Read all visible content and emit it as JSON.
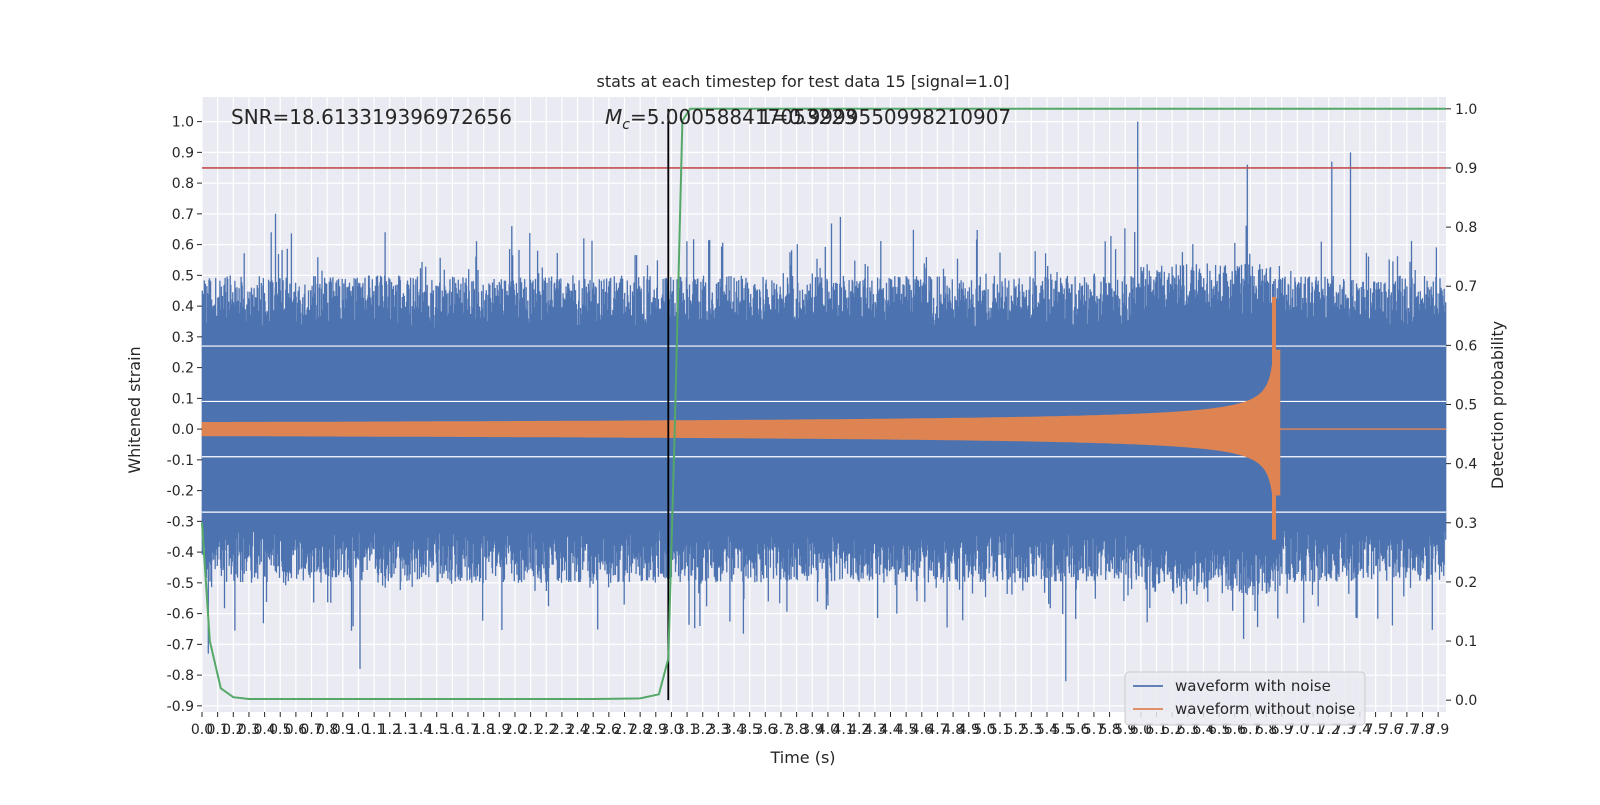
{
  "chart_data": {
    "type": "line",
    "title": "stats at each timestep for test data 15 [signal=1.0]",
    "xlabel": "Time (s)",
    "ylabel": "Whitened strain",
    "ylabel_right": "Detection probability",
    "xlim": [
      0.0,
      7.95
    ],
    "ylim": [
      -0.92,
      1.08
    ],
    "ylim_right": [
      -0.02,
      1.02
    ],
    "x_ticks": [
      0.0,
      0.1,
      0.2,
      0.3,
      0.4,
      0.5,
      0.6,
      0.7,
      0.8,
      0.9,
      1.0,
      1.1,
      1.2,
      1.3,
      1.4,
      1.5,
      1.6,
      1.7,
      1.8,
      1.9,
      2.0,
      2.1,
      2.2,
      2.3,
      2.4,
      2.5,
      2.6,
      2.7,
      2.8,
      2.9,
      3.0,
      3.1,
      3.2,
      3.3,
      3.4,
      3.5,
      3.6,
      3.7,
      3.8,
      3.9,
      4.0,
      4.1,
      4.2,
      4.3,
      4.4,
      4.5,
      4.6,
      4.7,
      4.8,
      4.9,
      5.0,
      5.1,
      5.2,
      5.3,
      5.4,
      5.5,
      5.6,
      5.7,
      5.8,
      5.9,
      6.0,
      6.1,
      6.2,
      6.3,
      6.4,
      6.5,
      6.6,
      6.7,
      6.8,
      6.9,
      7.0,
      7.1,
      7.2,
      7.3,
      7.4,
      7.5,
      7.6,
      7.7,
      7.8,
      7.9
    ],
    "y_ticks": [
      -0.9,
      -0.8,
      -0.7,
      -0.6,
      -0.5,
      -0.4,
      -0.3,
      -0.2,
      -0.1,
      0.0,
      0.1,
      0.2,
      0.3,
      0.4,
      0.5,
      0.6,
      0.7,
      0.8,
      0.9,
      1.0
    ],
    "y_ticks_right": [
      0.0,
      0.1,
      0.2,
      0.3,
      0.4,
      0.5,
      0.6,
      0.7,
      0.8,
      0.9,
      1.0
    ],
    "grid": true,
    "annotations": {
      "snr": "SNR=18.613319396972656",
      "mc_prefix": "M",
      "mc_sub": "c",
      "mc_value": "=5.000588417053223",
      "overlap": "1=0.9999550998210907"
    },
    "threshold_right": 0.9,
    "vline_x": 2.98,
    "series": [
      {
        "name": "waveform with noise",
        "color": "#4c72b0",
        "description": "whitened strain with noise, envelope roughly ±0.45 with spikes up to 1.0 near 5.98s",
        "spikes": [
          {
            "x": 0.47,
            "y": 0.7
          },
          {
            "x": 1.17,
            "y": 0.64
          },
          {
            "x": 1.98,
            "y": 0.66
          },
          {
            "x": 2.44,
            "y": 0.62
          },
          {
            "x": 4.08,
            "y": 0.69
          },
          {
            "x": 5.98,
            "y": 1.0
          },
          {
            "x": 6.68,
            "y": 0.86
          },
          {
            "x": 7.22,
            "y": 0.87
          },
          {
            "x": 7.34,
            "y": 0.9
          },
          {
            "x": 5.52,
            "y": -0.82
          },
          {
            "x": 1.01,
            "y": -0.78
          },
          {
            "x": 0.04,
            "y": -0.73
          }
        ]
      },
      {
        "name": "waveform without noise",
        "color": "#dd8452",
        "description": "chirp signal, amplitude growing from ~0.03 to peak ~0.43 at merger near 6.85s, then ringdown to 0",
        "merger_x": 6.86,
        "peak_y": 0.43,
        "min_y": -0.36
      },
      {
        "name": "detection probability",
        "color": "#55a868",
        "axis": "right",
        "x": [
          0.0,
          0.05,
          0.12,
          0.2,
          0.3,
          0.5,
          1.0,
          1.5,
          2.0,
          2.5,
          2.8,
          2.92,
          2.98,
          3.02,
          3.07,
          3.12,
          3.2,
          4.0,
          5.0,
          6.0,
          7.0,
          7.95
        ],
        "values": [
          0.3,
          0.1,
          0.02,
          0.005,
          0.002,
          0.002,
          0.002,
          0.002,
          0.002,
          0.002,
          0.003,
          0.01,
          0.07,
          0.45,
          0.98,
          1.0,
          1.0,
          1.0,
          1.0,
          1.0,
          1.0,
          1.0
        ]
      }
    ],
    "legend": {
      "position": "lower right",
      "entries": [
        {
          "label": "waveform with noise",
          "color": "#4c72b0"
        },
        {
          "label": "waveform without noise",
          "color": "#dd8452"
        }
      ]
    },
    "colors": {
      "plot_bg": "#eaeaf2",
      "grid": "#ffffff",
      "threshold": "#c44e52",
      "vline": "#000000"
    }
  }
}
